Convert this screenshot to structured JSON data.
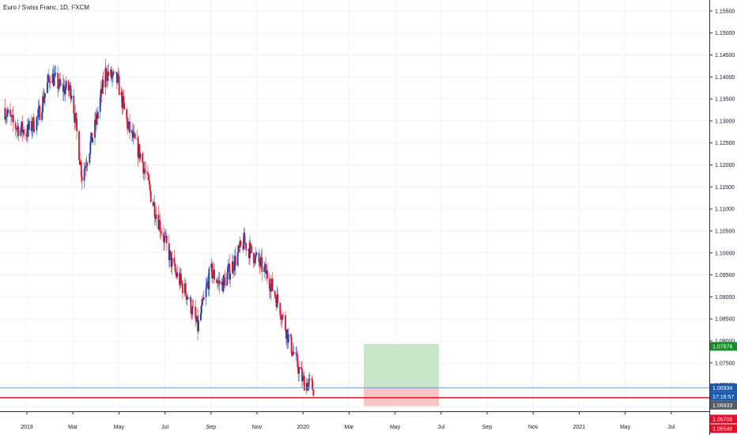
{
  "header": {
    "title": "Euro / Swiss Franc, 1D, FXCM"
  },
  "colors": {
    "up": "#1c3f95",
    "down": "#e0112b",
    "wick_up": "#4a7bd1",
    "wick_down": "#e55a5a",
    "grid": "#f0f3fa",
    "axis": "#2a2e39",
    "profit_zone": "#c7e6c7",
    "loss_zone": "#f6c6c6",
    "current_line": "#6d9ac8",
    "stop_line": "#e0112b",
    "badge_target": "#1b8a2a",
    "badge_price": "#1e5aa8",
    "badge_countdown": "#1e5aa8",
    "badge_prev": "#555a64",
    "badge_red": "#e0112b"
  },
  "chart_data": {
    "type": "candlestick",
    "title": "Euro / Swiss Franc, 1D, FXCM",
    "x": [
      "2018-12-01",
      "2018-12-15",
      "2019-01-01",
      "2019-01-15",
      "2019-02-01",
      "2019-02-15",
      "2019-03-01",
      "2019-03-15",
      "2019-04-01",
      "2019-04-15",
      "2019-05-01",
      "2019-05-15",
      "2019-06-01",
      "2019-06-15",
      "2019-07-01",
      "2019-07-15",
      "2019-08-01",
      "2019-08-15",
      "2019-09-01",
      "2019-09-15",
      "2019-10-01",
      "2019-10-15",
      "2019-11-01",
      "2019-11-15",
      "2019-12-01",
      "2019-12-15",
      "2020-01-01",
      "2020-01-15"
    ],
    "close": [
      1.133,
      1.129,
      1.1275,
      1.1305,
      1.1405,
      1.1375,
      1.137,
      1.1175,
      1.1285,
      1.141,
      1.139,
      1.1285,
      1.122,
      1.1125,
      1.1035,
      1.096,
      1.0905,
      1.083,
      1.096,
      1.0925,
      1.0975,
      1.1025,
      1.0985,
      1.095,
      1.088,
      1.0795,
      1.071,
      1.0693
    ],
    "y_ticks": [
      "1.15500",
      "1.15000",
      "1.14500",
      "1.14000",
      "1.13500",
      "1.13000",
      "1.12500",
      "1.12000",
      "1.11500",
      "1.11000",
      "1.10500",
      "1.10000",
      "1.09500",
      "1.09000",
      "1.08500",
      "1.08000",
      "1.07500",
      "1.07000",
      "1.06500"
    ],
    "x_ticks": [
      "2019",
      "Mar",
      "May",
      "Jul",
      "Sep",
      "Nov",
      "2020",
      "Mar",
      "May",
      "Jul",
      "Sep",
      "Nov",
      "2021",
      "May",
      "Jul"
    ],
    "ylim": [
      1.064,
      1.1575
    ],
    "levels": {
      "target": 1.07876,
      "current": 1.06934,
      "previous": 1.06933,
      "stop": 1.06708,
      "low": 1.06546
    },
    "countdown": "17:18:57",
    "price_labels": {
      "target": "1.07876",
      "current": "1.06934",
      "previous": "1.06933",
      "stop": "1.06708",
      "low": "1.06546"
    }
  }
}
